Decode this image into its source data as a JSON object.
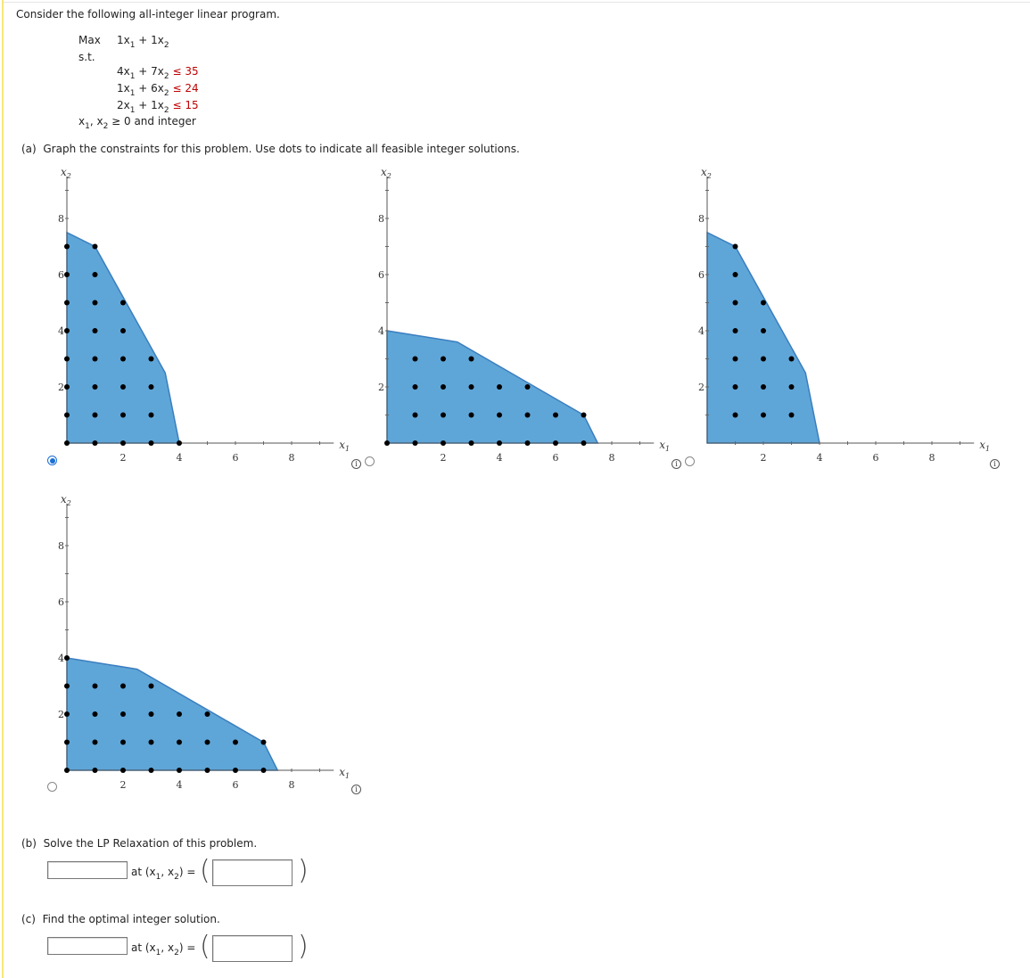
{
  "problem": {
    "intro": "Consider the following all-integer linear program.",
    "max_label": "Max",
    "objective": {
      "c1": "1x",
      "s1": "1",
      "op": " + ",
      "c2": "1x",
      "s2": "2"
    },
    "st_label": "s.t.",
    "constraints": [
      {
        "c1": "4x",
        "s1": "1",
        "op": " + ",
        "c2": "7x",
        "s2": "2",
        "rel": " ≤ 35"
      },
      {
        "c1": "1x",
        "s1": "1",
        "op": " + ",
        "c2": "6x",
        "s2": "2",
        "rel": " ≤ 24"
      },
      {
        "c1": "2x",
        "s1": "1",
        "op": " + ",
        "c2": "1x",
        "s2": "2",
        "rel": " ≤ 15"
      }
    ],
    "nonneg": {
      "a": "x",
      "s1": "1",
      "sep": ", x",
      "s2": "2",
      "rest": " ≥ 0 and integer"
    }
  },
  "part_a": {
    "label": "(a)",
    "text": "Graph the constraints for this problem. Use dots to indicate all feasible integer solutions.",
    "options": [
      {
        "selected": true,
        "region": [
          [
            0,
            7.5
          ],
          [
            1,
            7
          ],
          [
            3.5,
            2.5
          ],
          [
            4,
            0
          ],
          [
            0,
            0
          ]
        ],
        "dots": [
          [
            0,
            0
          ],
          [
            1,
            0
          ],
          [
            2,
            0
          ],
          [
            3,
            0
          ],
          [
            4,
            0
          ],
          [
            0,
            1
          ],
          [
            1,
            1
          ],
          [
            2,
            1
          ],
          [
            3,
            1
          ],
          [
            0,
            2
          ],
          [
            1,
            2
          ],
          [
            2,
            2
          ],
          [
            3,
            2
          ],
          [
            0,
            3
          ],
          [
            1,
            3
          ],
          [
            2,
            3
          ],
          [
            3,
            3
          ],
          [
            0,
            4
          ],
          [
            1,
            4
          ],
          [
            2,
            4
          ],
          [
            0,
            5
          ],
          [
            1,
            5
          ],
          [
            2,
            5
          ],
          [
            0,
            6
          ],
          [
            1,
            6
          ],
          [
            0,
            7
          ],
          [
            1,
            7
          ]
        ]
      },
      {
        "selected": false,
        "region": [
          [
            0,
            4
          ],
          [
            2.5,
            3.6
          ],
          [
            7,
            1
          ],
          [
            7.5,
            0
          ],
          [
            0,
            0
          ]
        ],
        "dots": [
          [
            0,
            0
          ],
          [
            1,
            0
          ],
          [
            2,
            0
          ],
          [
            3,
            0
          ],
          [
            4,
            0
          ],
          [
            5,
            0
          ],
          [
            6,
            0
          ],
          [
            7,
            0
          ],
          [
            1,
            1
          ],
          [
            2,
            1
          ],
          [
            3,
            1
          ],
          [
            4,
            1
          ],
          [
            5,
            1
          ],
          [
            6,
            1
          ],
          [
            7,
            1
          ],
          [
            1,
            2
          ],
          [
            2,
            2
          ],
          [
            3,
            2
          ],
          [
            4,
            2
          ],
          [
            5,
            2
          ],
          [
            1,
            3
          ],
          [
            2,
            3
          ],
          [
            3,
            3
          ]
        ]
      },
      {
        "selected": false,
        "region": [
          [
            0,
            7.5
          ],
          [
            1,
            7
          ],
          [
            3.5,
            2.5
          ],
          [
            4,
            0
          ],
          [
            0,
            0
          ]
        ],
        "dots": [
          [
            1,
            1
          ],
          [
            2,
            1
          ],
          [
            3,
            1
          ],
          [
            1,
            2
          ],
          [
            2,
            2
          ],
          [
            3,
            2
          ],
          [
            1,
            3
          ],
          [
            2,
            3
          ],
          [
            3,
            3
          ],
          [
            1,
            4
          ],
          [
            2,
            4
          ],
          [
            1,
            5
          ],
          [
            2,
            5
          ],
          [
            1,
            6
          ],
          [
            1,
            7
          ]
        ]
      },
      {
        "selected": false,
        "region": [
          [
            0,
            4
          ],
          [
            2.5,
            3.6
          ],
          [
            7,
            1
          ],
          [
            7.5,
            0
          ],
          [
            0,
            0
          ]
        ],
        "dots": [
          [
            0,
            0
          ],
          [
            1,
            0
          ],
          [
            2,
            0
          ],
          [
            3,
            0
          ],
          [
            4,
            0
          ],
          [
            5,
            0
          ],
          [
            6,
            0
          ],
          [
            7,
            0
          ],
          [
            0,
            1
          ],
          [
            1,
            1
          ],
          [
            2,
            1
          ],
          [
            3,
            1
          ],
          [
            4,
            1
          ],
          [
            5,
            1
          ],
          [
            6,
            1
          ],
          [
            7,
            1
          ],
          [
            0,
            2
          ],
          [
            1,
            2
          ],
          [
            2,
            2
          ],
          [
            3,
            2
          ],
          [
            4,
            2
          ],
          [
            5,
            2
          ],
          [
            0,
            3
          ],
          [
            1,
            3
          ],
          [
            2,
            3
          ],
          [
            3,
            3
          ],
          [
            0,
            4
          ]
        ]
      }
    ],
    "axis": {
      "xlabel": "x",
      "xsub": "1",
      "ylabel": "x",
      "ysub": "2",
      "xticks": [
        "2",
        "4",
        "6",
        "8"
      ],
      "yticks": [
        "2",
        "4",
        "6",
        "8"
      ],
      "range": [
        0,
        9.5
      ]
    },
    "region_color": "#5fa6d8",
    "region_edge": "#3a7ebf"
  },
  "part_b": {
    "label": "(b)",
    "text": "Solve the LP Relaxation of this problem.",
    "value": "",
    "at_text": "at (x",
    "s1": "1",
    "mid": ", x",
    "s2": "2",
    "end": ") =",
    "point": ""
  },
  "part_c": {
    "label": "(c)",
    "text": "Find the optimal integer solution.",
    "value": "",
    "at_text": "at (x",
    "s1": "1",
    "mid": ", x",
    "s2": "2",
    "end": ") =",
    "point": ""
  },
  "info_glyph": "i"
}
